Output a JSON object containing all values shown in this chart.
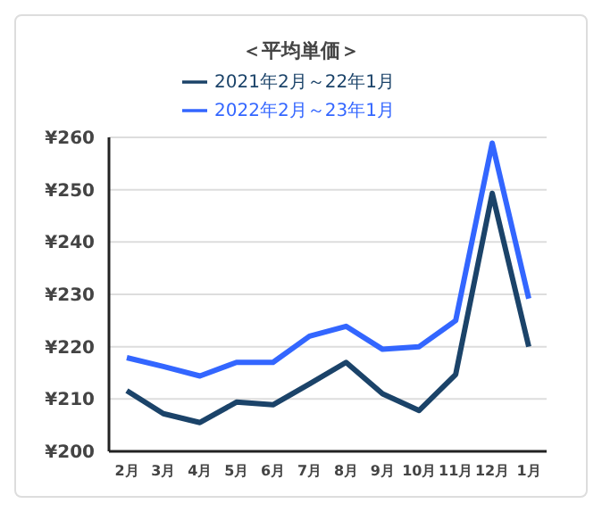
{
  "chart_data": {
    "type": "line",
    "title": "＜平均単価＞",
    "categories": [
      "2月",
      "3月",
      "4月",
      "5月",
      "6月",
      "7月",
      "8月",
      "9月",
      "10月",
      "11月",
      "12月",
      "1月"
    ],
    "series": [
      {
        "name": "2021年2月～22年1月",
        "color": "#1b4369",
        "values": [
          211.6,
          207.2,
          205.5,
          209.4,
          208.9,
          212.9,
          217,
          211,
          207.8,
          214.7,
          249.3,
          220
        ]
      },
      {
        "name": "2022年2月～23年1月",
        "color": "#3366ff",
        "values": [
          217.9,
          216.2,
          214.4,
          217,
          217,
          222,
          223.9,
          219.5,
          220,
          225,
          258.9,
          229.2
        ]
      }
    ],
    "ylim": [
      200,
      260
    ],
    "yticks": [
      {
        "value": 200,
        "label": "¥200"
      },
      {
        "value": 210,
        "label": "¥210"
      },
      {
        "value": 220,
        "label": "¥220"
      },
      {
        "value": 230,
        "label": "¥230"
      },
      {
        "value": 240,
        "label": "¥240"
      },
      {
        "value": 250,
        "label": "¥250"
      },
      {
        "value": 260,
        "label": "¥260"
      }
    ],
    "grid": "y",
    "legend": "top",
    "marker": "none",
    "line_style": "solid"
  }
}
